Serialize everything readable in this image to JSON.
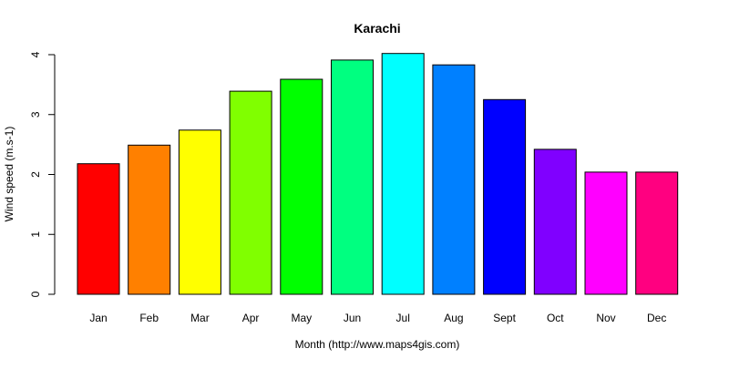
{
  "chart_data": {
    "type": "bar",
    "title": "Karachi",
    "xlabel": "Month (http://www.maps4gis.com)",
    "ylabel": "Wind speed (m.s-1)",
    "categories": [
      "Jan",
      "Feb",
      "Mar",
      "Apr",
      "May",
      "Jun",
      "Jul",
      "Aug",
      "Sept",
      "Oct",
      "Nov",
      "Dec"
    ],
    "values": [
      2.18,
      2.49,
      2.74,
      3.39,
      3.59,
      3.91,
      4.02,
      3.83,
      3.25,
      2.42,
      2.04,
      2.04
    ],
    "colors": [
      "#FF0000",
      "#FF8000",
      "#FFFF00",
      "#80FF00",
      "#00FF00",
      "#00FF80",
      "#00FFFF",
      "#0080FF",
      "#0000FF",
      "#8000FF",
      "#FF00FF",
      "#FF0080"
    ],
    "ylim": [
      0,
      4
    ],
    "yticks": [
      "0",
      "1",
      "2",
      "3",
      "4"
    ],
    "grid": false,
    "legend": "none"
  }
}
